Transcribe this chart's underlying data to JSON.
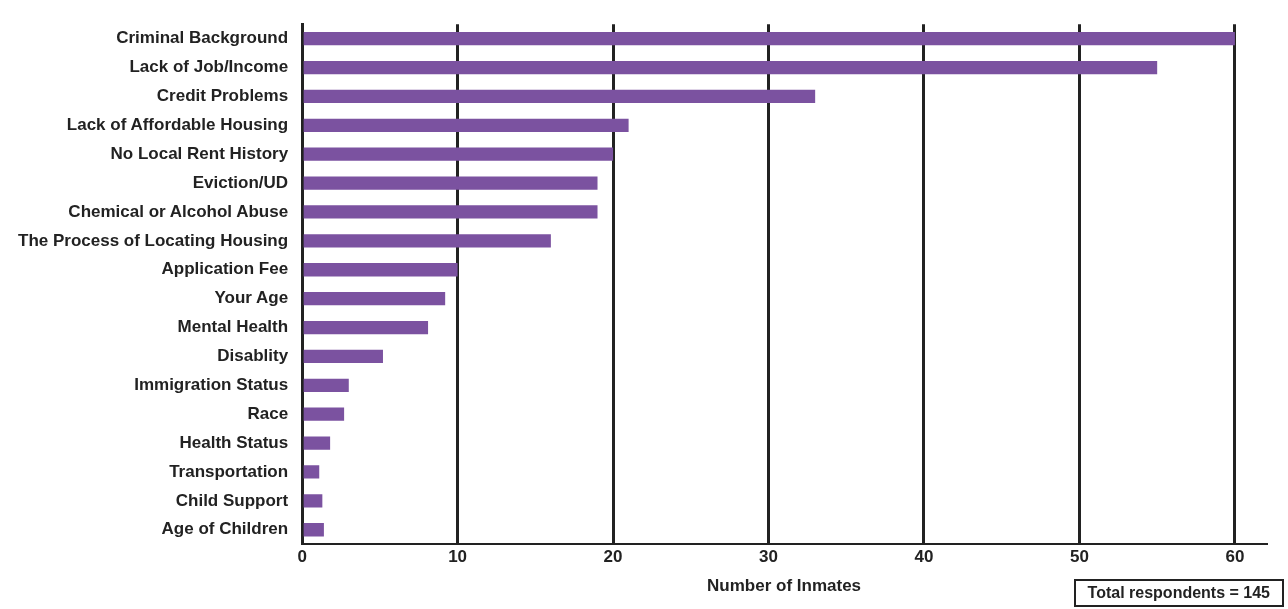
{
  "chart_data": {
    "type": "bar",
    "orientation": "horizontal",
    "categories": [
      "Criminal Background",
      "Lack of Job/Income",
      "Credit Problems",
      "Lack of Affordable Housing",
      "No Local Rent History",
      "Eviction/UD",
      "Chemical or Alcohol Abuse",
      "The Process of Locating Housing",
      "Application Fee",
      "Your Age",
      "Mental Health",
      "Disablity",
      "Immigration Status",
      "Race",
      "Health Status",
      "Transportation",
      "Child Support",
      "Age of Children"
    ],
    "values": [
      60,
      55,
      33,
      21,
      20,
      19,
      19,
      16,
      10,
      9.2,
      8.1,
      5.2,
      3,
      2.7,
      1.8,
      1.1,
      1.3,
      1.4
    ],
    "color": "#7b52a0",
    "xlabel": "Number of Inmates",
    "xlim": [
      0,
      62
    ],
    "xticks": [
      0,
      10,
      20,
      30,
      40,
      50,
      60
    ],
    "grid": "x",
    "legend": false,
    "annotations": [
      "Total respondents = 145"
    ]
  }
}
